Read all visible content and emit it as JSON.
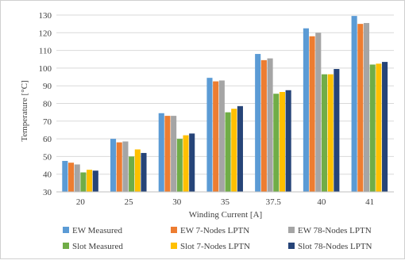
{
  "chart_data": {
    "type": "bar",
    "title": "",
    "xlabel": "Winding Current [A]",
    "ylabel": "Temperature [°C]",
    "ylim": [
      30,
      130
    ],
    "yticks": [
      30,
      40,
      50,
      60,
      70,
      80,
      90,
      100,
      110,
      120,
      130
    ],
    "grid": true,
    "legend_position": "bottom",
    "categories": [
      "20",
      "25",
      "30",
      "35",
      "37.5",
      "40",
      "41"
    ],
    "series": [
      {
        "name": "EW Measured",
        "color": "#5b9bd5",
        "values": [
          47.5,
          60,
          74.5,
          94.5,
          108,
          122.5,
          129.5
        ]
      },
      {
        "name": "EW 7-Nodes LPTN",
        "color": "#ed7d31",
        "values": [
          46.5,
          58,
          73,
          92.5,
          104.5,
          118,
          125
        ]
      },
      {
        "name": "EW 78-Nodes LPTN",
        "color": "#a5a5a5",
        "values": [
          45.5,
          58.5,
          73,
          93,
          105.5,
          120,
          125.5
        ]
      },
      {
        "name": "Slot Measured",
        "color": "#70ad47",
        "values": [
          41,
          50,
          60,
          75,
          85.5,
          96.5,
          102
        ]
      },
      {
        "name": "Slot 7-Nodes LPTN",
        "color": "#ffc000",
        "values": [
          42.5,
          54,
          62,
          77,
          86.5,
          96.5,
          102.5
        ]
      },
      {
        "name": "Slot 78-Nodes LPTN",
        "color": "#264478",
        "values": [
          42,
          52,
          63,
          78.5,
          87.5,
          99.5,
          103.5
        ]
      }
    ]
  }
}
